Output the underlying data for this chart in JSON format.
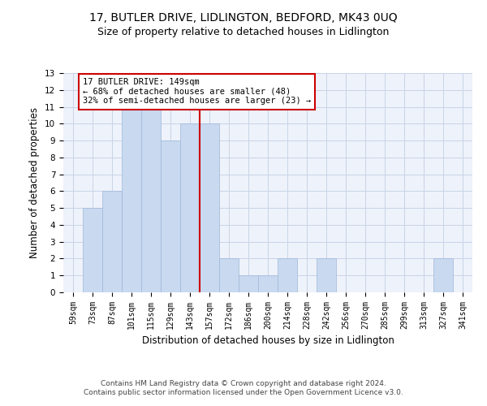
{
  "title1": "17, BUTLER DRIVE, LIDLINGTON, BEDFORD, MK43 0UQ",
  "title2": "Size of property relative to detached houses in Lidlington",
  "xlabel": "Distribution of detached houses by size in Lidlington",
  "ylabel": "Number of detached properties",
  "categories": [
    "59sqm",
    "73sqm",
    "87sqm",
    "101sqm",
    "115sqm",
    "129sqm",
    "143sqm",
    "157sqm",
    "172sqm",
    "186sqm",
    "200sqm",
    "214sqm",
    "228sqm",
    "242sqm",
    "256sqm",
    "270sqm",
    "285sqm",
    "299sqm",
    "313sqm",
    "327sqm",
    "341sqm"
  ],
  "values": [
    0,
    5,
    6,
    11,
    11,
    9,
    10,
    10,
    2,
    1,
    1,
    2,
    0,
    2,
    0,
    0,
    0,
    0,
    0,
    2,
    0
  ],
  "bar_color": "#c8d9f0",
  "bar_edge_color": "#a0b8d8",
  "vline_x_index": 6.5,
  "vline_color": "#cc0000",
  "annotation_title": "17 BUTLER DRIVE: 149sqm",
  "annotation_line1": "← 68% of detached houses are smaller (48)",
  "annotation_line2": "32% of semi-detached houses are larger (23) →",
  "annotation_box_color": "#ffffff",
  "annotation_box_edgecolor": "#cc0000",
  "ylim": [
    0,
    13
  ],
  "yticks": [
    0,
    1,
    2,
    3,
    4,
    5,
    6,
    7,
    8,
    9,
    10,
    11,
    12,
    13
  ],
  "grid_color": "#c8d4e8",
  "background_color": "#eef2fa",
  "footer1": "Contains HM Land Registry data © Crown copyright and database right 2024.",
  "footer2": "Contains public sector information licensed under the Open Government Licence v3.0.",
  "title_fontsize": 10,
  "subtitle_fontsize": 9,
  "tick_fontsize": 7,
  "ylabel_fontsize": 8.5,
  "xlabel_fontsize": 8.5,
  "annotation_fontsize": 7.5,
  "footer_fontsize": 6.5
}
